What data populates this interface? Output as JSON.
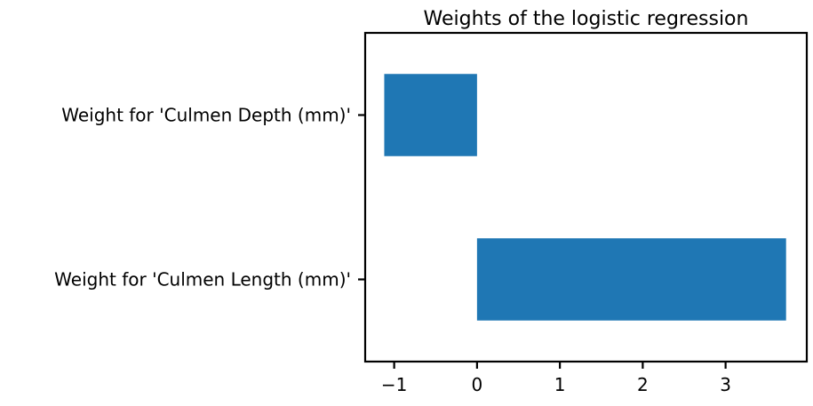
{
  "chart_data": {
    "type": "bar",
    "orientation": "horizontal",
    "title": "Weights of the logistic regression",
    "xlabel": "",
    "ylabel": "",
    "categories": [
      "Weight for 'Culmen Depth (mm)'",
      "Weight for 'Culmen Length (mm)'"
    ],
    "values": [
      -1.12,
      3.73
    ],
    "xlim": [
      -1.35,
      3.98
    ],
    "xticks": [
      -1,
      0,
      1,
      2,
      3
    ],
    "xtick_labels": [
      "−1",
      "0",
      "1",
      "2",
      "3"
    ],
    "grid": false,
    "legend": "none",
    "bar_color": "#1f77b4"
  }
}
